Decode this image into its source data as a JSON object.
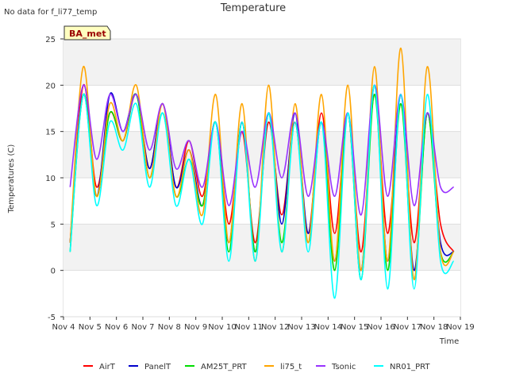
{
  "no_data_note": "No data for f_li77_temp",
  "station_badge": "BA_met",
  "chart_data": {
    "type": "line",
    "title": "Temperature",
    "xlabel": "Time",
    "ylabel": "Temperatures (C)",
    "xlim": [
      "2023-11-04",
      "2023-11-19"
    ],
    "ylim": [
      -5,
      25
    ],
    "x_ticks": [
      "Nov 4",
      "Nov 5",
      "Nov 6",
      "Nov 7",
      "Nov 8",
      "Nov 9",
      "Nov 10",
      "Nov 11",
      "Nov 12",
      "Nov 13",
      "Nov 14",
      "Nov 15",
      "Nov 16",
      "Nov 17",
      "Nov 18",
      "Nov 19"
    ],
    "y_ticks": [
      -5,
      0,
      5,
      10,
      15,
      20,
      25
    ],
    "grid": "horizontal bands",
    "legend_position": "bottom",
    "x": [
      "Nov 4 06:00",
      "Nov 4 18:00",
      "Nov 5 06:00",
      "Nov 5 18:00",
      "Nov 6 06:00",
      "Nov 6 18:00",
      "Nov 7 06:00",
      "Nov 7 18:00",
      "Nov 8 06:00",
      "Nov 8 18:00",
      "Nov 9 06:00",
      "Nov 9 18:00",
      "Nov 10 06:00",
      "Nov 10 18:00",
      "Nov 11 06:00",
      "Nov 11 18:00",
      "Nov 12 06:00",
      "Nov 12 18:00",
      "Nov 13 06:00",
      "Nov 13 18:00",
      "Nov 14 06:00",
      "Nov 14 18:00",
      "Nov 15 06:00",
      "Nov 15 18:00",
      "Nov 16 06:00",
      "Nov 16 18:00",
      "Nov 17 06:00",
      "Nov 17 18:00",
      "Nov 18 06:00",
      "Nov 18 18:00"
    ],
    "series": [
      {
        "name": "AirT",
        "color": "#ff0000",
        "values": [
          3,
          20,
          9,
          17,
          14,
          19,
          11,
          18,
          9,
          14,
          8,
          16,
          5,
          15,
          3,
          16,
          6,
          16,
          4,
          17,
          4,
          17,
          2,
          19,
          4,
          18,
          3,
          17,
          5,
          2
        ]
      },
      {
        "name": "PanelT",
        "color": "#0000cc",
        "values": [
          3,
          19,
          8,
          19,
          15,
          19,
          11,
          18,
          9,
          13,
          7,
          16,
          3,
          16,
          2,
          17,
          5,
          17,
          4,
          16,
          1,
          17,
          0,
          20,
          1,
          19,
          0,
          17,
          3,
          2
        ]
      },
      {
        "name": "AM25T_PRT",
        "color": "#00dd00",
        "values": [
          2,
          19,
          8,
          17,
          14,
          19,
          10,
          17,
          8,
          12,
          7,
          16,
          2,
          16,
          2,
          17,
          3,
          16,
          3,
          16,
          0,
          17,
          -1,
          19,
          0,
          18,
          -1,
          17,
          2,
          2
        ]
      },
      {
        "name": "li75_t",
        "color": "#ffa500",
        "values": [
          3,
          22,
          8,
          18,
          14,
          20,
          10,
          18,
          8,
          13,
          6,
          19,
          3,
          18,
          1,
          20,
          2,
          18,
          3,
          19,
          1,
          20,
          0,
          22,
          1,
          24,
          -1,
          22,
          2,
          2
        ]
      },
      {
        "name": "Tsonic",
        "color": "#9933ff",
        "values": [
          9,
          20,
          12,
          19,
          15,
          19,
          13,
          18,
          11,
          14,
          9,
          16,
          7,
          15,
          9,
          17,
          10,
          17,
          8,
          16,
          8,
          17,
          6,
          20,
          8,
          19,
          7,
          17,
          9,
          9
        ]
      },
      {
        "name": "NR01_PRT",
        "color": "#00ffff",
        "values": [
          2,
          19,
          7,
          16,
          13,
          18,
          9,
          17,
          7,
          12,
          5,
          16,
          1,
          16,
          1,
          17,
          2,
          16,
          2,
          16,
          -3,
          17,
          -1,
          20,
          -2,
          19,
          -2,
          19,
          1,
          1
        ]
      }
    ]
  }
}
